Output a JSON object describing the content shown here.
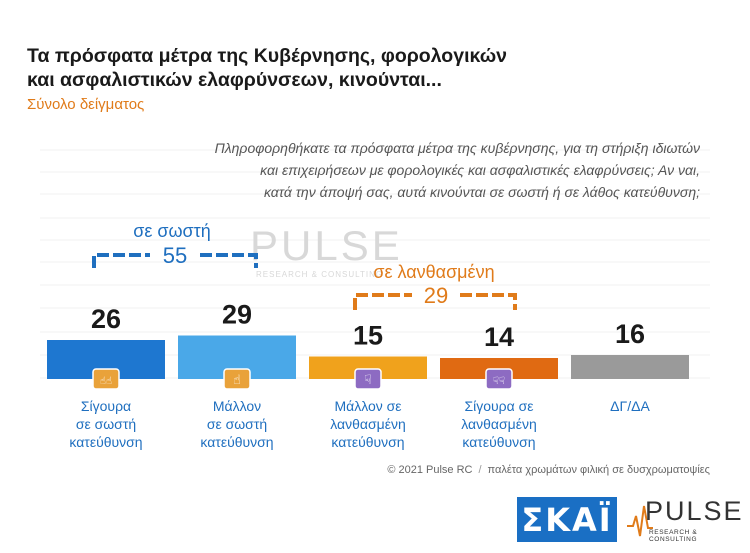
{
  "header": {
    "title_line1": "Τα πρόσφατα μέτρα της Κυβέρνησης, φορολογικών",
    "title_line2": "και ασφαλιστικών ελαφρύνσεων, κινούνται...",
    "subtitle": "Σύνολο δείγματος"
  },
  "question": {
    "line1": "Πληροφορηθήκατε τα πρόσφατα μέτρα της κυβέρνησης, για τη στήριξη ιδιωτών",
    "line2": "και επιχειρήσεων με φορολογικές και ασφαλιστικές ελαφρύνσεις; Αν ναι,",
    "line3": "κατά την άποψή σας, αυτά κινούνται σε σωστή ή σε λάθος κατεύθυνση;"
  },
  "groups": {
    "correct": {
      "label": "σε σωστή",
      "total": "55",
      "color": "#1f6fbf"
    },
    "wrong": {
      "label": "σε λανθασμένη",
      "total": "29",
      "color": "#e07b1a"
    }
  },
  "chart_data": {
    "type": "bar",
    "categories": [
      [
        "Σίγουρα",
        "σε σωστή",
        "κατεύθυνση"
      ],
      [
        "Μάλλον",
        "σε σωστή",
        "κατεύθυνση"
      ],
      [
        "Μάλλον σε",
        "λανθασμένη",
        "κατεύθυνση"
      ],
      [
        "Σίγουρα σε",
        "λανθασμένη",
        "κατεύθυνση"
      ],
      [
        "ΔΓ/ΔΑ"
      ]
    ],
    "values": [
      26,
      29,
      15,
      14,
      16
    ],
    "colors": [
      "#1e77d0",
      "#4aa8e8",
      "#f0a21c",
      "#e06a12",
      "#9a9a9a"
    ],
    "icons": [
      "double-thumbs-up-icon",
      "thumbs-up-icon",
      "thumbs-down-icon",
      "double-thumbs-down-icon",
      ""
    ],
    "icon_colors": [
      "#e9a23a",
      "#e9a23a",
      "#8d6bc2",
      "#8d6bc2",
      ""
    ],
    "ylim": [
      0,
      30
    ]
  },
  "footer": {
    "copyright": "© 2021 Pulse RC",
    "palette_note": "παλέτα χρωμάτων φιλική σε δυσχρωματοψίες"
  },
  "logos": {
    "skai": "ΣΚΑΪ",
    "pulse": "PULSE",
    "pulse_sub": "RESEARCH & CONSULTING"
  },
  "watermark": {
    "word": "PULSE",
    "sub": "RESEARCH & CONSULTING"
  }
}
